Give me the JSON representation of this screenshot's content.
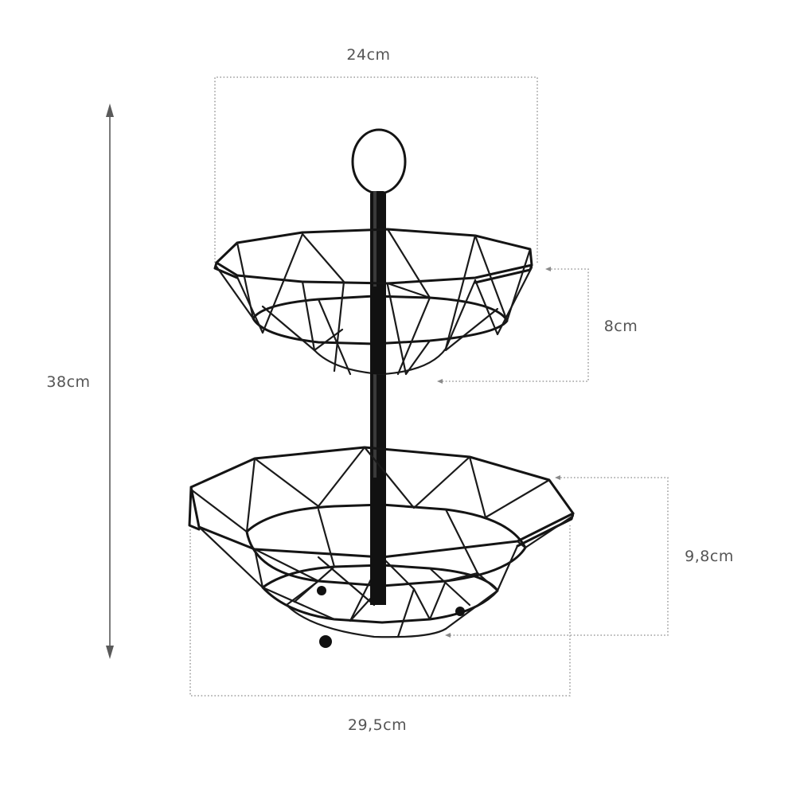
{
  "dimensions": {
    "top_width": "24cm",
    "total_height": "38cm",
    "top_depth": "8cm",
    "bottom_depth": "9,8cm",
    "bottom_width": "29,5cm"
  },
  "colors": {
    "wire": "#141414",
    "label": "#555555",
    "guide": "#8a8a8a"
  }
}
